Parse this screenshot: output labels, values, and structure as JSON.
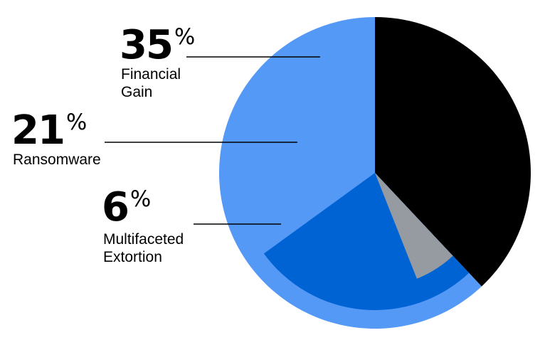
{
  "chart_data": {
    "type": "pie",
    "title": "",
    "slices": [
      {
        "value": 35,
        "percent_label": "35",
        "unit": "%",
        "label_lines": [
          "Financial",
          "Gain"
        ],
        "color": "#5599f6"
      },
      {
        "value": 21,
        "percent_label": "21",
        "unit": "%",
        "label_lines": [
          "Ransomware"
        ],
        "color": "#0063d4"
      },
      {
        "value": 6,
        "percent_label": "6",
        "unit": "%",
        "label_lines": [
          "Multifaceted",
          "Extortion"
        ],
        "color": "#959ba1"
      }
    ],
    "remainder": {
      "color": "#000000"
    },
    "label_color": "#000000",
    "leader_color": "#000000"
  }
}
